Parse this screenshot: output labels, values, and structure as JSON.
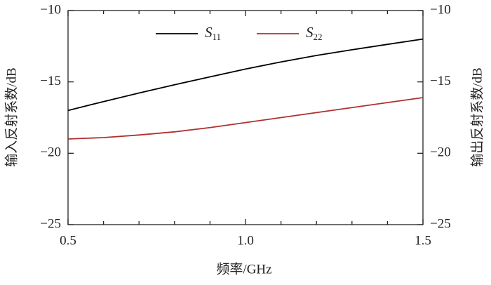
{
  "chart_data": {
    "type": "line",
    "x_label": "频率/GHz",
    "y_label": "输入反射系数/dB",
    "y2_label": "输出反射系数/dB",
    "x": [
      0.5,
      0.6,
      0.7,
      0.8,
      0.9,
      1.0,
      1.1,
      1.2,
      1.3,
      1.4,
      1.5
    ],
    "series": [
      {
        "name": "S11",
        "color": "#000000",
        "values": [
          -17,
          -16.38,
          -15.78,
          -15.2,
          -14.65,
          -14.1,
          -13.6,
          -13.15,
          -12.75,
          -12.37,
          -12.0
        ]
      },
      {
        "name": "S22",
        "color": "#b03030",
        "values": [
          -19,
          -18.9,
          -18.72,
          -18.5,
          -18.2,
          -17.85,
          -17.5,
          -17.15,
          -16.8,
          -16.45,
          -16.1
        ]
      }
    ],
    "xlim": [
      0.5,
      1.5
    ],
    "xticks": [
      0.5,
      {
        "value": 1,
        "label": "1.0"
      },
      1.5
    ],
    "xminorticks": [
      0.6,
      0.7,
      0.8,
      0.9,
      1.1,
      1.2,
      1.3,
      1.4
    ],
    "ylim": [
      -25,
      -10
    ],
    "yticks": [
      {
        "value": -25,
        "label": "−25"
      },
      {
        "value": -20,
        "label": "−20"
      },
      {
        "value": -15,
        "label": "−15"
      },
      {
        "value": -10,
        "label": "−10"
      }
    ],
    "y2lim": [
      -25,
      -10
    ],
    "y2ticks": [
      {
        "value": -25,
        "label": "−25"
      },
      {
        "value": -20,
        "label": "−20"
      },
      {
        "value": -15,
        "label": "−15"
      },
      {
        "value": -10,
        "label": "−10"
      }
    ],
    "grid": false
  }
}
